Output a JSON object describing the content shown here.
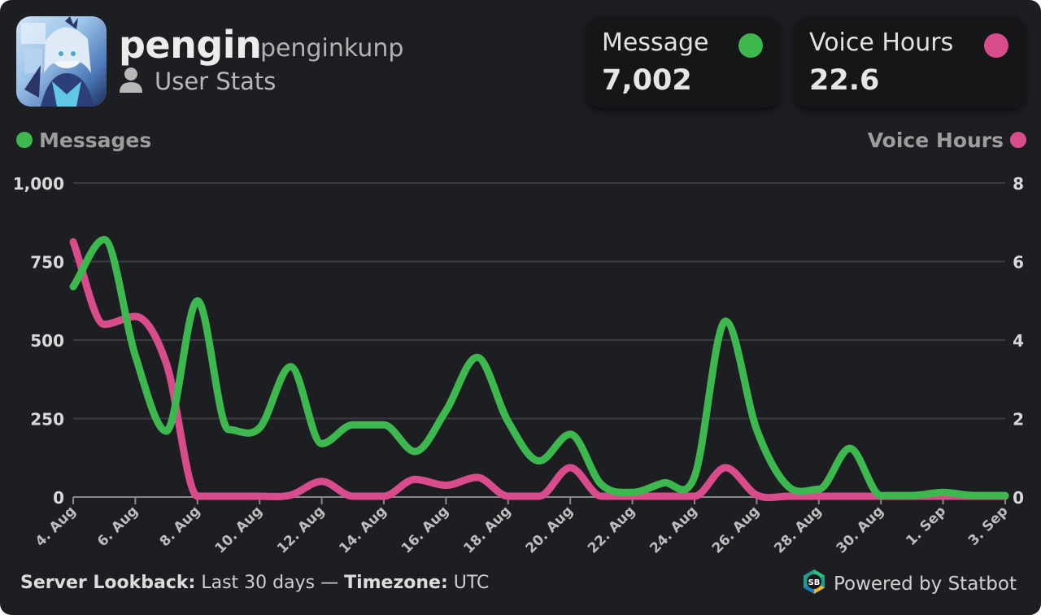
{
  "user": {
    "display_name": "pengin",
    "username": "penginkunp",
    "subtitle": "User Stats"
  },
  "stats": [
    {
      "label": "Message",
      "value": "7,002",
      "color": "#3db84f"
    },
    {
      "label": "Voice Hours",
      "value": "22.6",
      "color": "#d94c8b"
    }
  ],
  "legend": {
    "left": "Messages",
    "right": "Voice Hours"
  },
  "footer": {
    "lookback_label": "Server Lookback:",
    "lookback_value": "Last 30 days",
    "separator": "—",
    "timezone_label": "Timezone:",
    "timezone_value": "UTC",
    "powered": "Powered by Statbot",
    "logo_text": "SB"
  },
  "icons": {
    "user": "user-icon",
    "logo": "statbot-logo-icon"
  },
  "colors": {
    "background": "#1d1e22",
    "messages": "#3db84f",
    "voice": "#d94c8b"
  },
  "chart_data": {
    "type": "line",
    "x": [
      "4. Aug",
      "5. Aug",
      "6. Aug",
      "7. Aug",
      "8. Aug",
      "9. Aug",
      "10. Aug",
      "11. Aug",
      "12. Aug",
      "13. Aug",
      "14. Aug",
      "15. Aug",
      "16. Aug",
      "17. Aug",
      "18. Aug",
      "19. Aug",
      "20. Aug",
      "21. Aug",
      "22. Aug",
      "23. Aug",
      "24. Aug",
      "25. Aug",
      "26. Aug",
      "27. Aug",
      "28. Aug",
      "29. Aug",
      "30. Aug",
      "31. Aug",
      "1. Sep",
      "2. Sep",
      "3. Sep"
    ],
    "xticks": [
      "4. Aug",
      "6. Aug",
      "8. Aug",
      "10. Aug",
      "12. Aug",
      "14. Aug",
      "16. Aug",
      "18. Aug",
      "20. Aug",
      "22. Aug",
      "24. Aug",
      "26. Aug",
      "28. Aug",
      "30. Aug",
      "1. Sep",
      "3. Sep"
    ],
    "series": [
      {
        "name": "Messages",
        "axis": "left",
        "color": "#3db84f",
        "values": [
          670,
          820,
          450,
          210,
          625,
          215,
          220,
          415,
          170,
          230,
          230,
          145,
          275,
          445,
          240,
          115,
          200,
          40,
          15,
          45,
          65,
          560,
          215,
          35,
          25,
          155,
          5,
          5,
          15,
          5,
          5
        ]
      },
      {
        "name": "Voice Hours",
        "axis": "right",
        "color": "#d94c8b",
        "values": [
          6.5,
          4.4,
          4.6,
          3.4,
          0,
          0,
          0,
          0.05,
          0.4,
          0,
          0,
          0.45,
          0.3,
          0.5,
          0,
          0,
          0.75,
          0,
          0,
          0,
          0,
          0.75,
          0.05,
          0,
          0,
          0,
          0,
          0,
          0,
          0,
          0
        ]
      }
    ],
    "y_left": {
      "min": 0,
      "max": 1000,
      "ticks": [
        0,
        250,
        500,
        750,
        1000
      ],
      "tick_labels": [
        "0",
        "250",
        "500",
        "750",
        "1,000"
      ]
    },
    "y_right": {
      "min": 0,
      "max": 8,
      "ticks": [
        0,
        2,
        4,
        6,
        8
      ],
      "tick_labels": [
        "0",
        "2",
        "4",
        "6",
        "8"
      ]
    },
    "grid": true
  }
}
